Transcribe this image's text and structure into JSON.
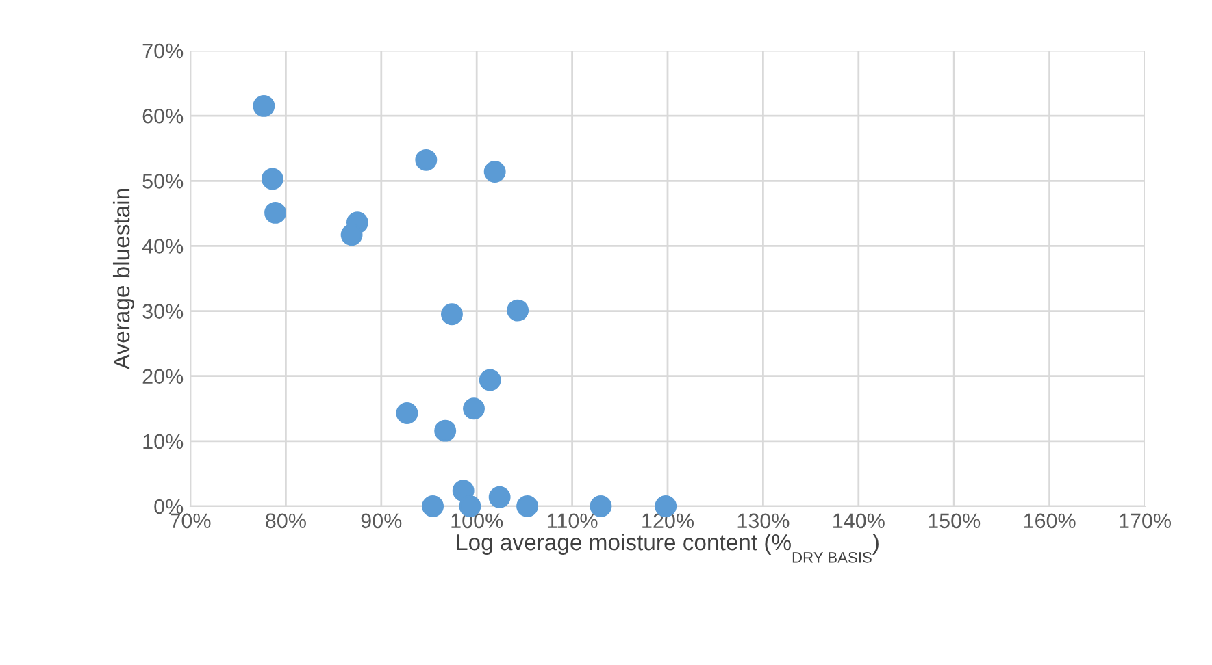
{
  "chart_data": {
    "type": "scatter",
    "xlabel": "Log average moisture content (%$_{DRY BASIS}$)",
    "ylabel": "Average bluestain",
    "x": [
      77.7,
      78.6,
      78.9,
      87.5,
      86.9,
      94.7,
      101.9,
      97.4,
      104.3,
      101.4,
      92.7,
      99.7,
      96.7,
      98.6,
      102.4,
      95.4,
      99.3,
      105.3,
      113.0,
      119.8
    ],
    "series": [
      {
        "color": "#5b9bd5",
        "values": [
          61.5,
          50.3,
          45.1,
          43.6,
          41.7,
          53.2,
          51.4,
          29.5,
          30.1,
          19.4,
          14.3,
          15.0,
          11.6,
          2.4,
          1.4,
          0,
          0,
          0,
          0,
          0
        ]
      }
    ],
    "xlim": [
      70,
      170
    ],
    "xticks": [
      {
        "value": 70,
        "label": "70%"
      },
      {
        "value": 80,
        "label": "80%"
      },
      {
        "value": 90,
        "label": "90%"
      },
      {
        "value": 100,
        "label": "100%"
      },
      {
        "value": 110,
        "label": "110%"
      },
      {
        "value": 120,
        "label": "120%"
      },
      {
        "value": 130,
        "label": "130%"
      },
      {
        "value": 140,
        "label": "140%"
      },
      {
        "value": 150,
        "label": "150%"
      },
      {
        "value": 160,
        "label": "160%"
      },
      {
        "value": 170,
        "label": "170%"
      }
    ],
    "ylim": [
      0,
      70
    ],
    "yticks": [
      {
        "value": 0,
        "label": "0%"
      },
      {
        "value": 10,
        "label": "10%"
      },
      {
        "value": 20,
        "label": "20%"
      },
      {
        "value": 30,
        "label": "30%"
      },
      {
        "value": 40,
        "label": "40%"
      },
      {
        "value": 50,
        "label": "50%"
      },
      {
        "value": 60,
        "label": "60%"
      },
      {
        "value": 70,
        "label": "70%"
      }
    ],
    "grid": true,
    "marker": "circle",
    "legend": false
  }
}
